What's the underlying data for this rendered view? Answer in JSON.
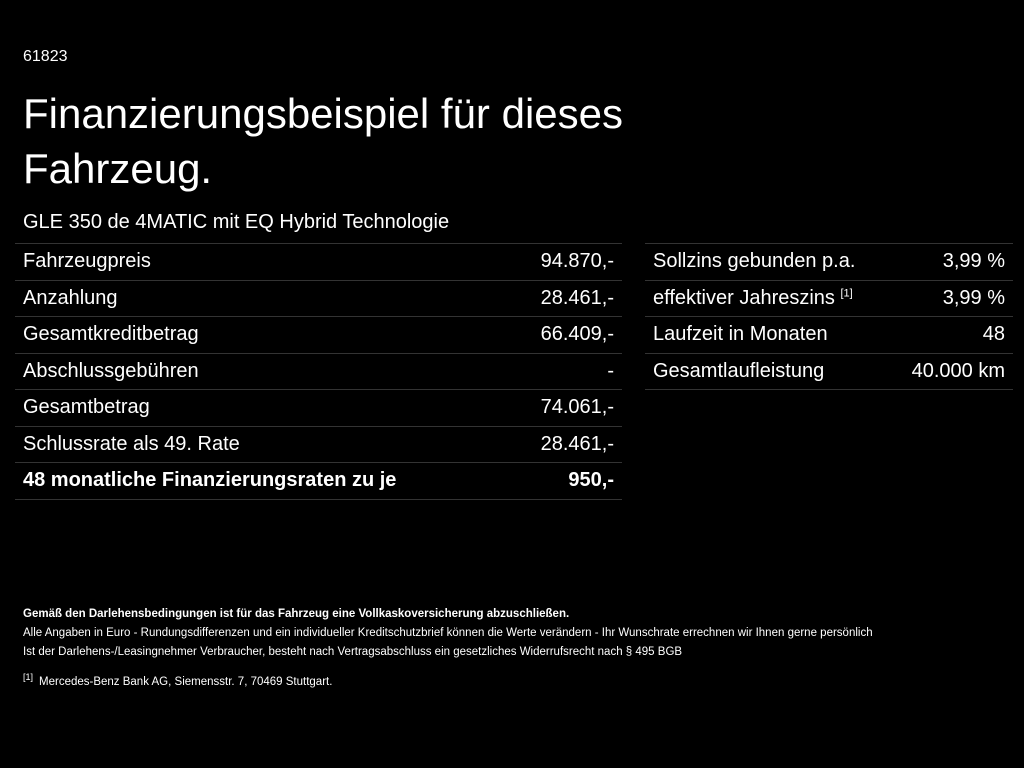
{
  "header": {
    "code": "61823",
    "title": "Finanzierungsbeispiel für dieses Fahrzeug.",
    "model": "GLE 350 de 4MATIC mit EQ Hybrid Technologie"
  },
  "left_table": {
    "rows": [
      [
        "Fahrzeugpreis",
        "94.870,-"
      ],
      [
        "Anzahlung",
        "28.461,-"
      ],
      [
        "Gesamtkreditbetrag",
        "66.409,-"
      ],
      [
        "Abschlussgebühren",
        "-"
      ],
      [
        "Gesamtbetrag",
        "74.061,-"
      ],
      [
        "Schlussrate als 49. Rate",
        "28.461,-"
      ],
      [
        "48 monatliche Finanzierungsraten zu je",
        "950,-"
      ]
    ]
  },
  "right_table": {
    "rows": [
      {
        "label": "Sollzins gebunden p.a.",
        "value": "3,99 %"
      },
      {
        "label": "effektiver Jahreszins",
        "note": "[1]",
        "value": "3,99 %"
      },
      {
        "label": "Laufzeit in Monaten",
        "value": "48"
      },
      {
        "label": "Gesamtlaufleistung",
        "value": "40.000 km"
      }
    ]
  },
  "footer": {
    "bold_note": "Gemäß den Darlehensbedingungen ist für das Fahrzeug eine Vollkaskoversicherung abzuschließen.",
    "lines": [
      "Alle Angaben in Euro - Rundungsdifferenzen und ein individueller Kreditschutzbrief können die Werte verändern - Ihr Wunschrate errechnen wir Ihnen gerne persönlich",
      "Ist der Darlehens-/Leasingnehmer Verbraucher, besteht nach Vertragsabschluss ein gesetzliches Widerrufsrecht nach § 495 BGB"
    ],
    "footnote_marker": "[1]",
    "footnote": "Mercedes-Benz Bank AG, Siemensstr. 7, 70469 Stuttgart."
  }
}
